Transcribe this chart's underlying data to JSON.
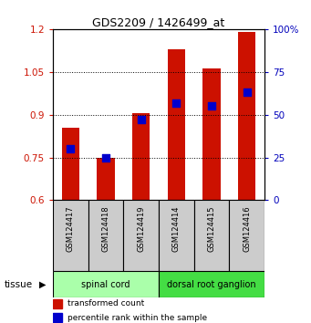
{
  "title": "GDS2209 / 1426499_at",
  "samples": [
    "GSM124417",
    "GSM124418",
    "GSM124419",
    "GSM124414",
    "GSM124415",
    "GSM124416"
  ],
  "transformed_count": [
    0.855,
    0.748,
    0.905,
    1.13,
    1.063,
    1.19
  ],
  "percentile_rank": [
    30,
    25,
    47,
    57,
    55,
    63
  ],
  "ylim_left": [
    0.6,
    1.2
  ],
  "ylim_right": [
    0,
    100
  ],
  "yticks_left": [
    0.6,
    0.75,
    0.9,
    1.05,
    1.2
  ],
  "yticks_right": [
    0,
    25,
    50,
    75,
    100
  ],
  "ytick_labels_left": [
    "0.6",
    "0.75",
    "0.9",
    "1.05",
    "1.2"
  ],
  "ytick_labels_right": [
    "0",
    "25",
    "50",
    "75",
    "100%"
  ],
  "bar_color": "#cc1100",
  "blue_color": "#0000cc",
  "bar_bottom": 0.6,
  "tissue_groups": [
    {
      "label": "spinal cord",
      "samples": [
        0,
        1,
        2
      ],
      "color": "#aaffaa"
    },
    {
      "label": "dorsal root ganglion",
      "samples": [
        3,
        4,
        5
      ],
      "color": "#44dd44"
    }
  ],
  "tissue_label": "tissue",
  "legend_items": [
    {
      "label": "transformed count",
      "color": "#cc1100"
    },
    {
      "label": "percentile rank within the sample",
      "color": "#0000cc"
    }
  ],
  "background_color": "#ffffff",
  "plot_bg_color": "#ffffff",
  "xlabel_color_left": "#cc1100",
  "xlabel_color_right": "#0000bb",
  "label_bg_color": "#cccccc"
}
